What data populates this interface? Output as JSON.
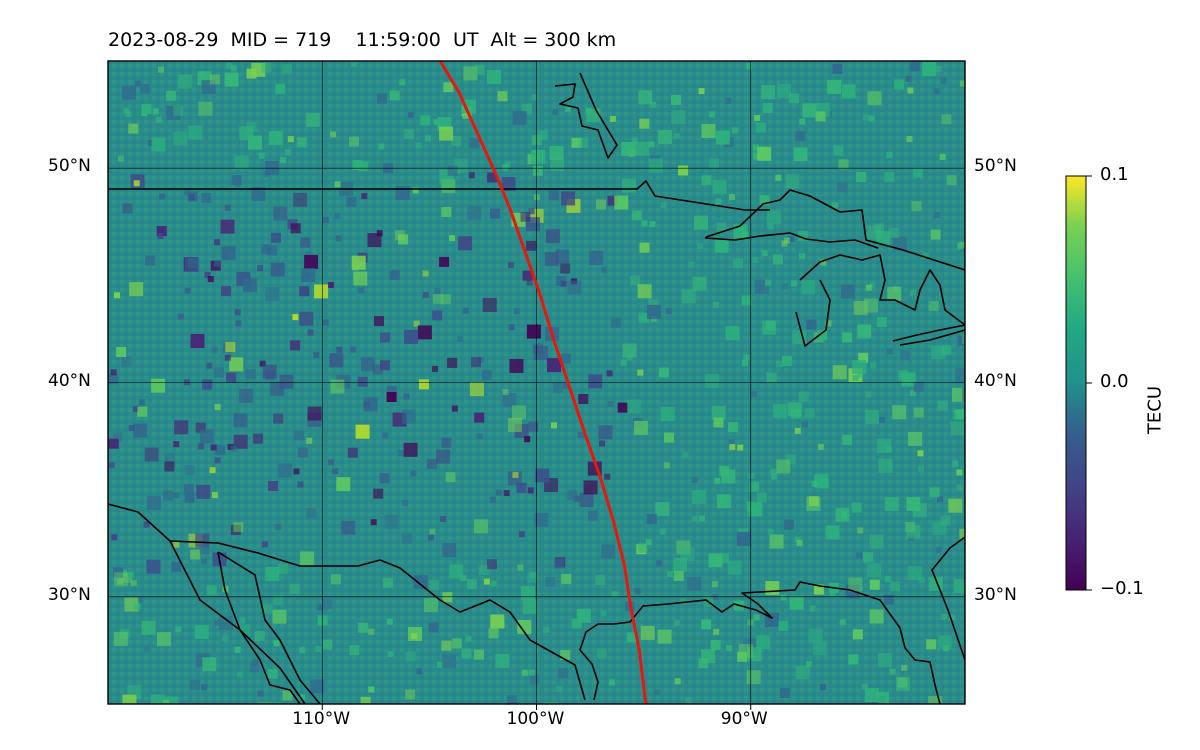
{
  "title": "2023-08-29  MID = 719    11:59:00  UT  Alt = 300 km",
  "map": {
    "lon_range": [
      -120,
      -80
    ],
    "lat_range": [
      25,
      55
    ],
    "grid": true,
    "lat_ticks": [
      {
        "value": 30,
        "label": "30°N"
      },
      {
        "value": 40,
        "label": "40°N"
      },
      {
        "value": 50,
        "label": "50°N"
      }
    ],
    "lon_ticks": [
      {
        "value": -110,
        "label": "110°W"
      },
      {
        "value": -100,
        "label": "100°W"
      },
      {
        "value": -90,
        "label": "90°W"
      }
    ],
    "terminator_color": "#e8160c",
    "terminator": [
      [
        -104.5,
        55
      ],
      [
        -103.6,
        53.5
      ],
      [
        -102.7,
        51.5
      ],
      [
        -101.8,
        49.5
      ],
      [
        -101.2,
        48
      ],
      [
        -100.5,
        46
      ],
      [
        -99.8,
        44
      ],
      [
        -99.2,
        42
      ],
      [
        -98.7,
        40.5
      ],
      [
        -98.2,
        39
      ],
      [
        -97.7,
        37.5
      ],
      [
        -97.0,
        35.5
      ],
      [
        -96.4,
        33.5
      ],
      [
        -95.9,
        31.5
      ],
      [
        -95.6,
        29.5
      ],
      [
        -95.2,
        27.5
      ],
      [
        -94.9,
        25
      ]
    ]
  },
  "colorbar": {
    "title": "TECU",
    "colormap": "viridis",
    "min": -0.1,
    "max": 0.1,
    "ticks": [
      {
        "value": 0.1,
        "label": "0.1"
      },
      {
        "value": 0.0,
        "label": "0.0"
      },
      {
        "value": -0.1,
        "label": "−0.1"
      }
    ]
  }
}
